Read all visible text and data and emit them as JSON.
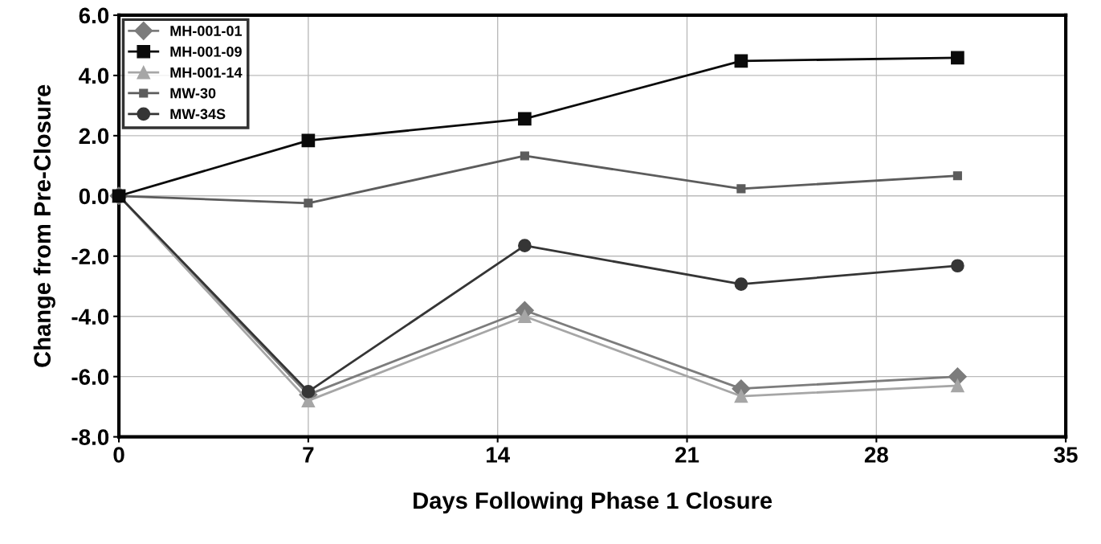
{
  "chart_data": {
    "type": "line",
    "xlabel": "Days Following Phase 1 Closure",
    "ylabel": "Change from Pre-Closure",
    "x": [
      0,
      7,
      15,
      23,
      31
    ],
    "series": [
      {
        "name": "MH-001-01",
        "color": "#7c7c7c",
        "marker": "diamond",
        "values": [
          0.0,
          -6.6,
          -3.8,
          -6.4,
          -6.0
        ]
      },
      {
        "name": "MH-001-09",
        "color": "#0a0a0a",
        "marker": "square",
        "values": [
          0.0,
          1.84,
          2.56,
          4.48,
          4.59
        ]
      },
      {
        "name": "MH-001-14",
        "color": "#a6a6a6",
        "marker": "triangle",
        "values": [
          0.0,
          -6.8,
          -4.0,
          -6.65,
          -6.3
        ]
      },
      {
        "name": "MW-30",
        "color": "#5c5c5c",
        "marker": "square",
        "values": [
          0.0,
          -0.24,
          1.33,
          0.24,
          0.67
        ]
      },
      {
        "name": "MW-34S",
        "color": "#353535",
        "marker": "circle",
        "values": [
          0.0,
          -6.5,
          -1.65,
          -2.93,
          -2.32
        ]
      }
    ],
    "xlim": [
      0,
      35
    ],
    "xticks": [
      0,
      7,
      14,
      21,
      28,
      35
    ],
    "ylim": [
      -8,
      6
    ],
    "yticks": [
      {
        "value": -8,
        "label": "-8.0"
      },
      {
        "value": -6,
        "label": "-6.0"
      },
      {
        "value": -4,
        "label": "-4.0"
      },
      {
        "value": -2,
        "label": "-2.0"
      },
      {
        "value": 0,
        "label": "0.0"
      },
      {
        "value": 2,
        "label": "2.0"
      },
      {
        "value": 4,
        "label": "4.0"
      },
      {
        "value": 6,
        "label": "6.0"
      }
    ],
    "grid": true,
    "legend": "top left",
    "line_style": "solid"
  }
}
